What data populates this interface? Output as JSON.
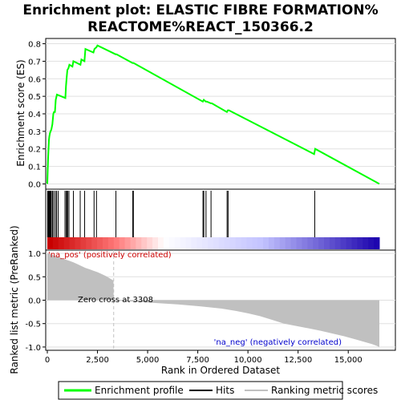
{
  "title_line1": "Enrichment plot: ELASTIC FIBRE FORMATION%",
  "title_line2": "REACTOME%REACT_150366.2",
  "colors": {
    "enrichment_line": "#00ff00",
    "hit": "#000000",
    "metric_fill": "#c0c0c0",
    "zero_cross": "#c0c0c0",
    "pos_label": "#cc0000",
    "neg_label": "#0000cc"
  },
  "chart_data": [
    {
      "type": "line",
      "name": "Enrichment profile",
      "ylabel": "Enrichment score (ES)",
      "ylim": [
        -0.03,
        0.83
      ],
      "yticks": [
        "0.0",
        "0.1",
        "0.2",
        "0.3",
        "0.4",
        "0.5",
        "0.6",
        "0.7",
        "0.8"
      ],
      "ytick_values": [
        0.0,
        0.1,
        0.2,
        0.3,
        0.4,
        0.5,
        0.6,
        0.7,
        0.8
      ],
      "x": [
        0,
        20,
        40,
        60,
        80,
        100,
        130,
        160,
        200,
        250,
        300,
        330,
        380,
        420,
        480,
        900,
        930,
        960,
        1000,
        1050,
        1100,
        1250,
        1300,
        1650,
        1700,
        1850,
        1900,
        2300,
        2350,
        2450,
        2500,
        3400,
        3450,
        4250,
        4300,
        7750,
        7800,
        7900,
        7950,
        8150,
        8200,
        8950,
        9000,
        9050,
        13300,
        13350,
        16550
      ],
      "y": [
        0.0,
        0.08,
        0.15,
        0.2,
        0.25,
        0.27,
        0.29,
        0.3,
        0.31,
        0.34,
        0.4,
        0.41,
        0.41,
        0.48,
        0.51,
        0.49,
        0.56,
        0.6,
        0.65,
        0.66,
        0.68,
        0.67,
        0.7,
        0.68,
        0.71,
        0.7,
        0.77,
        0.75,
        0.77,
        0.78,
        0.79,
        0.74,
        0.74,
        0.69,
        0.69,
        0.47,
        0.48,
        0.47,
        0.47,
        0.46,
        0.46,
        0.41,
        0.42,
        0.42,
        0.17,
        0.2,
        0.0
      ],
      "hits": [
        15,
        40,
        70,
        100,
        130,
        160,
        200,
        260,
        320,
        400,
        460,
        540,
        880,
        940,
        990,
        1020,
        1080,
        1300,
        1640,
        1860,
        2330,
        2450,
        3420,
        4260,
        4290,
        7760,
        7800,
        7910,
        8160,
        8960,
        9010,
        13330
      ],
      "x_max": 16550
    },
    {
      "type": "area",
      "name": "Ranking metric scores",
      "ylabel": "Ranked list metric (PreRanked)",
      "xlabel": "Rank in Ordered Dataset",
      "ylim": [
        -1.07,
        1.07
      ],
      "yticks": [
        "1.0",
        "0.5",
        "0.0",
        "-0.5",
        "-1.0"
      ],
      "ytick_values": [
        1.0,
        0.5,
        0.0,
        -0.5,
        -1.0
      ],
      "xticks": [
        "0",
        "2,500",
        "5,000",
        "7,500",
        "10,000",
        "12,500",
        "15,000"
      ],
      "xtick_values": [
        0,
        2500,
        5000,
        7500,
        10000,
        12500,
        15000
      ],
      "x": [
        0,
        100,
        300,
        500,
        700,
        900,
        1100,
        1300,
        1500,
        1700,
        1900,
        2100,
        2300,
        2500,
        2700,
        2900,
        3100,
        3300,
        3308,
        3400,
        4000,
        5000,
        6500,
        7600,
        8700,
        9400,
        10000,
        10600,
        11200,
        11800,
        12400,
        13000,
        13600,
        14200,
        14800,
        15400,
        15800,
        16200,
        16400,
        16550
      ],
      "y": [
        1.0,
        0.99,
        0.96,
        0.93,
        0.9,
        0.87,
        0.84,
        0.81,
        0.77,
        0.73,
        0.69,
        0.66,
        0.63,
        0.6,
        0.56,
        0.52,
        0.47,
        0.42,
        0.0,
        -0.01,
        -0.02,
        -0.05,
        -0.09,
        -0.13,
        -0.18,
        -0.23,
        -0.28,
        -0.34,
        -0.42,
        -0.5,
        -0.55,
        -0.6,
        -0.65,
        -0.71,
        -0.77,
        -0.84,
        -0.89,
        -0.94,
        -0.97,
        -1.0
      ],
      "zero_cross": 3308,
      "x_max": 16550
    }
  ],
  "annotations": {
    "pos": "'na_pos' (positively correlated)",
    "neg": "'na_neg' (negatively correlated)",
    "zero_cross": "Zero cross at 3308"
  },
  "legend": {
    "enrichment": "Enrichment profile",
    "hits": "Hits",
    "metric": "Ranking metric scores"
  }
}
